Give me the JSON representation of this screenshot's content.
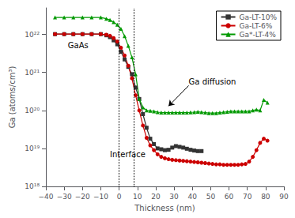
{
  "chart_data": {
    "type": "line",
    "xlabel": "Thickness (nm)",
    "ylabel": "Ga (atoms/cm³)",
    "log": "y",
    "grid": false,
    "legend": "upper right",
    "xlim": [
      -40,
      90
    ],
    "xticks": [
      {
        "value": -40,
        "label": "−40"
      },
      {
        "value": -30,
        "label": "−30"
      },
      {
        "value": -20,
        "label": "−20"
      },
      {
        "value": -10,
        "label": "−10"
      },
      0,
      10,
      20,
      30,
      40,
      50,
      60,
      70,
      80,
      90
    ],
    "ylim": [
      1e+18,
      5e+22
    ],
    "yticks": [
      {
        "value": 1e+18,
        "label": "10¹⁸"
      },
      {
        "value": 1e+19,
        "label": "10¹⁹"
      },
      {
        "value": 1e+20,
        "label": "10²⁰"
      },
      {
        "value": 1e+21,
        "label": "10²¹"
      },
      {
        "value": 1e+22,
        "label": "10²²"
      }
    ],
    "vlines": [
      0,
      8
    ],
    "annotations": [
      {
        "text": "GaAs",
        "x": -28,
        "y": 4e+21
      },
      {
        "text": "Interface",
        "x": -5,
        "y": 5.5e+18
      },
      {
        "text": "Ga diffusion",
        "x": 38,
        "y": 4.5e+20,
        "arrow_to": [
          27,
          1.3e+20
        ]
      }
    ],
    "series": [
      {
        "name": "Ga-LT-10%",
        "color": "#333333",
        "marker": "square",
        "x": [
          -35,
          -30,
          -25,
          -20,
          -15,
          -10,
          -7,
          -5,
          -3,
          -1,
          1,
          3,
          5,
          7,
          9,
          11,
          13,
          15,
          17,
          19,
          21,
          23,
          25,
          27,
          29,
          31,
          33,
          35,
          37,
          39,
          41,
          43,
          45
        ],
        "values": [
          1.02e+22,
          1.02e+22,
          1.02e+22,
          1.02e+22,
          1.02e+22,
          1.02e+22,
          9.5e+21,
          8.5e+21,
          7e+21,
          5.5e+21,
          3.5e+21,
          2.2e+21,
          1.4e+21,
          9e+20,
          4e+20,
          2e+20,
          8e+19,
          3.5e+19,
          1.8e+19,
          1.3e+19,
          1e+19,
          9.5e+18,
          9e+18,
          9.2e+18,
          1.05e+19,
          1.15e+19,
          1.1e+19,
          1.05e+19,
          9.8e+18,
          9.2e+18,
          8.8e+18,
          8.5e+18,
          8.5e+18
        ]
      },
      {
        "name": "Ga-LT-6%",
        "color": "#cc0000",
        "marker": "circle",
        "x": [
          -35,
          -30,
          -25,
          -20,
          -15,
          -10,
          -7,
          -5,
          -3,
          -1,
          1,
          3,
          5,
          7,
          9,
          11,
          13,
          15,
          17,
          19,
          21,
          23,
          25,
          27,
          29,
          31,
          33,
          35,
          37,
          39,
          41,
          43,
          45,
          47,
          49,
          51,
          53,
          55,
          57,
          59,
          61,
          63,
          65,
          67,
          69,
          71,
          73,
          75,
          77,
          79,
          81
        ],
        "values": [
          1.02e+22,
          1.02e+22,
          1.02e+22,
          1.02e+22,
          1.02e+22,
          1.02e+22,
          9.8e+21,
          9.2e+21,
          8e+21,
          6.5e+21,
          4.5e+21,
          2.8e+21,
          1.5e+21,
          7e+20,
          2.5e+20,
          1e+20,
          4e+19,
          1.9e+19,
          1.2e+19,
          9e+18,
          7e+18,
          6e+18,
          5.5e+18,
          5.2e+18,
          5e+18,
          4.9e+18,
          4.8e+18,
          4.7e+18,
          4.6e+18,
          4.5e+18,
          4.4e+18,
          4.3e+18,
          4.2e+18,
          4.1e+18,
          4e+18,
          3.9e+18,
          3.8e+18,
          3.8e+18,
          3.7e+18,
          3.7e+18,
          3.7e+18,
          3.7e+18,
          3.7e+18,
          3.8e+18,
          3.9e+18,
          4.5e+18,
          6e+18,
          9e+18,
          1.4e+19,
          1.8e+19,
          1.6e+19
        ]
      },
      {
        "name": "Ga*-LT-4%",
        "color": "#009900",
        "marker": "triangle",
        "x": [
          -35,
          -30,
          -25,
          -20,
          -15,
          -10,
          -7,
          -5,
          -3,
          -1,
          1,
          3,
          5,
          7,
          9,
          11,
          13,
          15,
          17,
          19,
          21,
          23,
          25,
          27,
          29,
          31,
          33,
          35,
          37,
          39,
          41,
          43,
          45,
          47,
          49,
          51,
          53,
          55,
          57,
          59,
          61,
          63,
          65,
          67,
          69,
          71,
          73,
          75,
          77,
          79,
          81
        ],
        "values": [
          2.8e+22,
          2.8e+22,
          2.8e+22,
          2.8e+22,
          2.8e+22,
          2.8e+22,
          2.6e+22,
          2.4e+22,
          2.1e+22,
          1.8e+22,
          1.4e+22,
          9e+21,
          5e+21,
          2.5e+21,
          9e+20,
          2e+20,
          1.2e+20,
          1e+20,
          9.8e+19,
          9.5e+19,
          9e+19,
          8.8e+19,
          8.8e+19,
          8.8e+19,
          8.8e+19,
          8.8e+19,
          8.8e+19,
          8.8e+19,
          8.8e+19,
          8.9e+19,
          9e+19,
          9.2e+19,
          9e+19,
          8.8e+19,
          8.5e+19,
          8.5e+19,
          8.5e+19,
          8.8e+19,
          9e+19,
          9.2e+19,
          9.5e+19,
          9.5e+19,
          9.5e+19,
          9.5e+19,
          9.5e+19,
          9.5e+19,
          1e+20,
          1.05e+20,
          1e+20,
          1.9e+20,
          1.6e+20
        ]
      }
    ]
  }
}
